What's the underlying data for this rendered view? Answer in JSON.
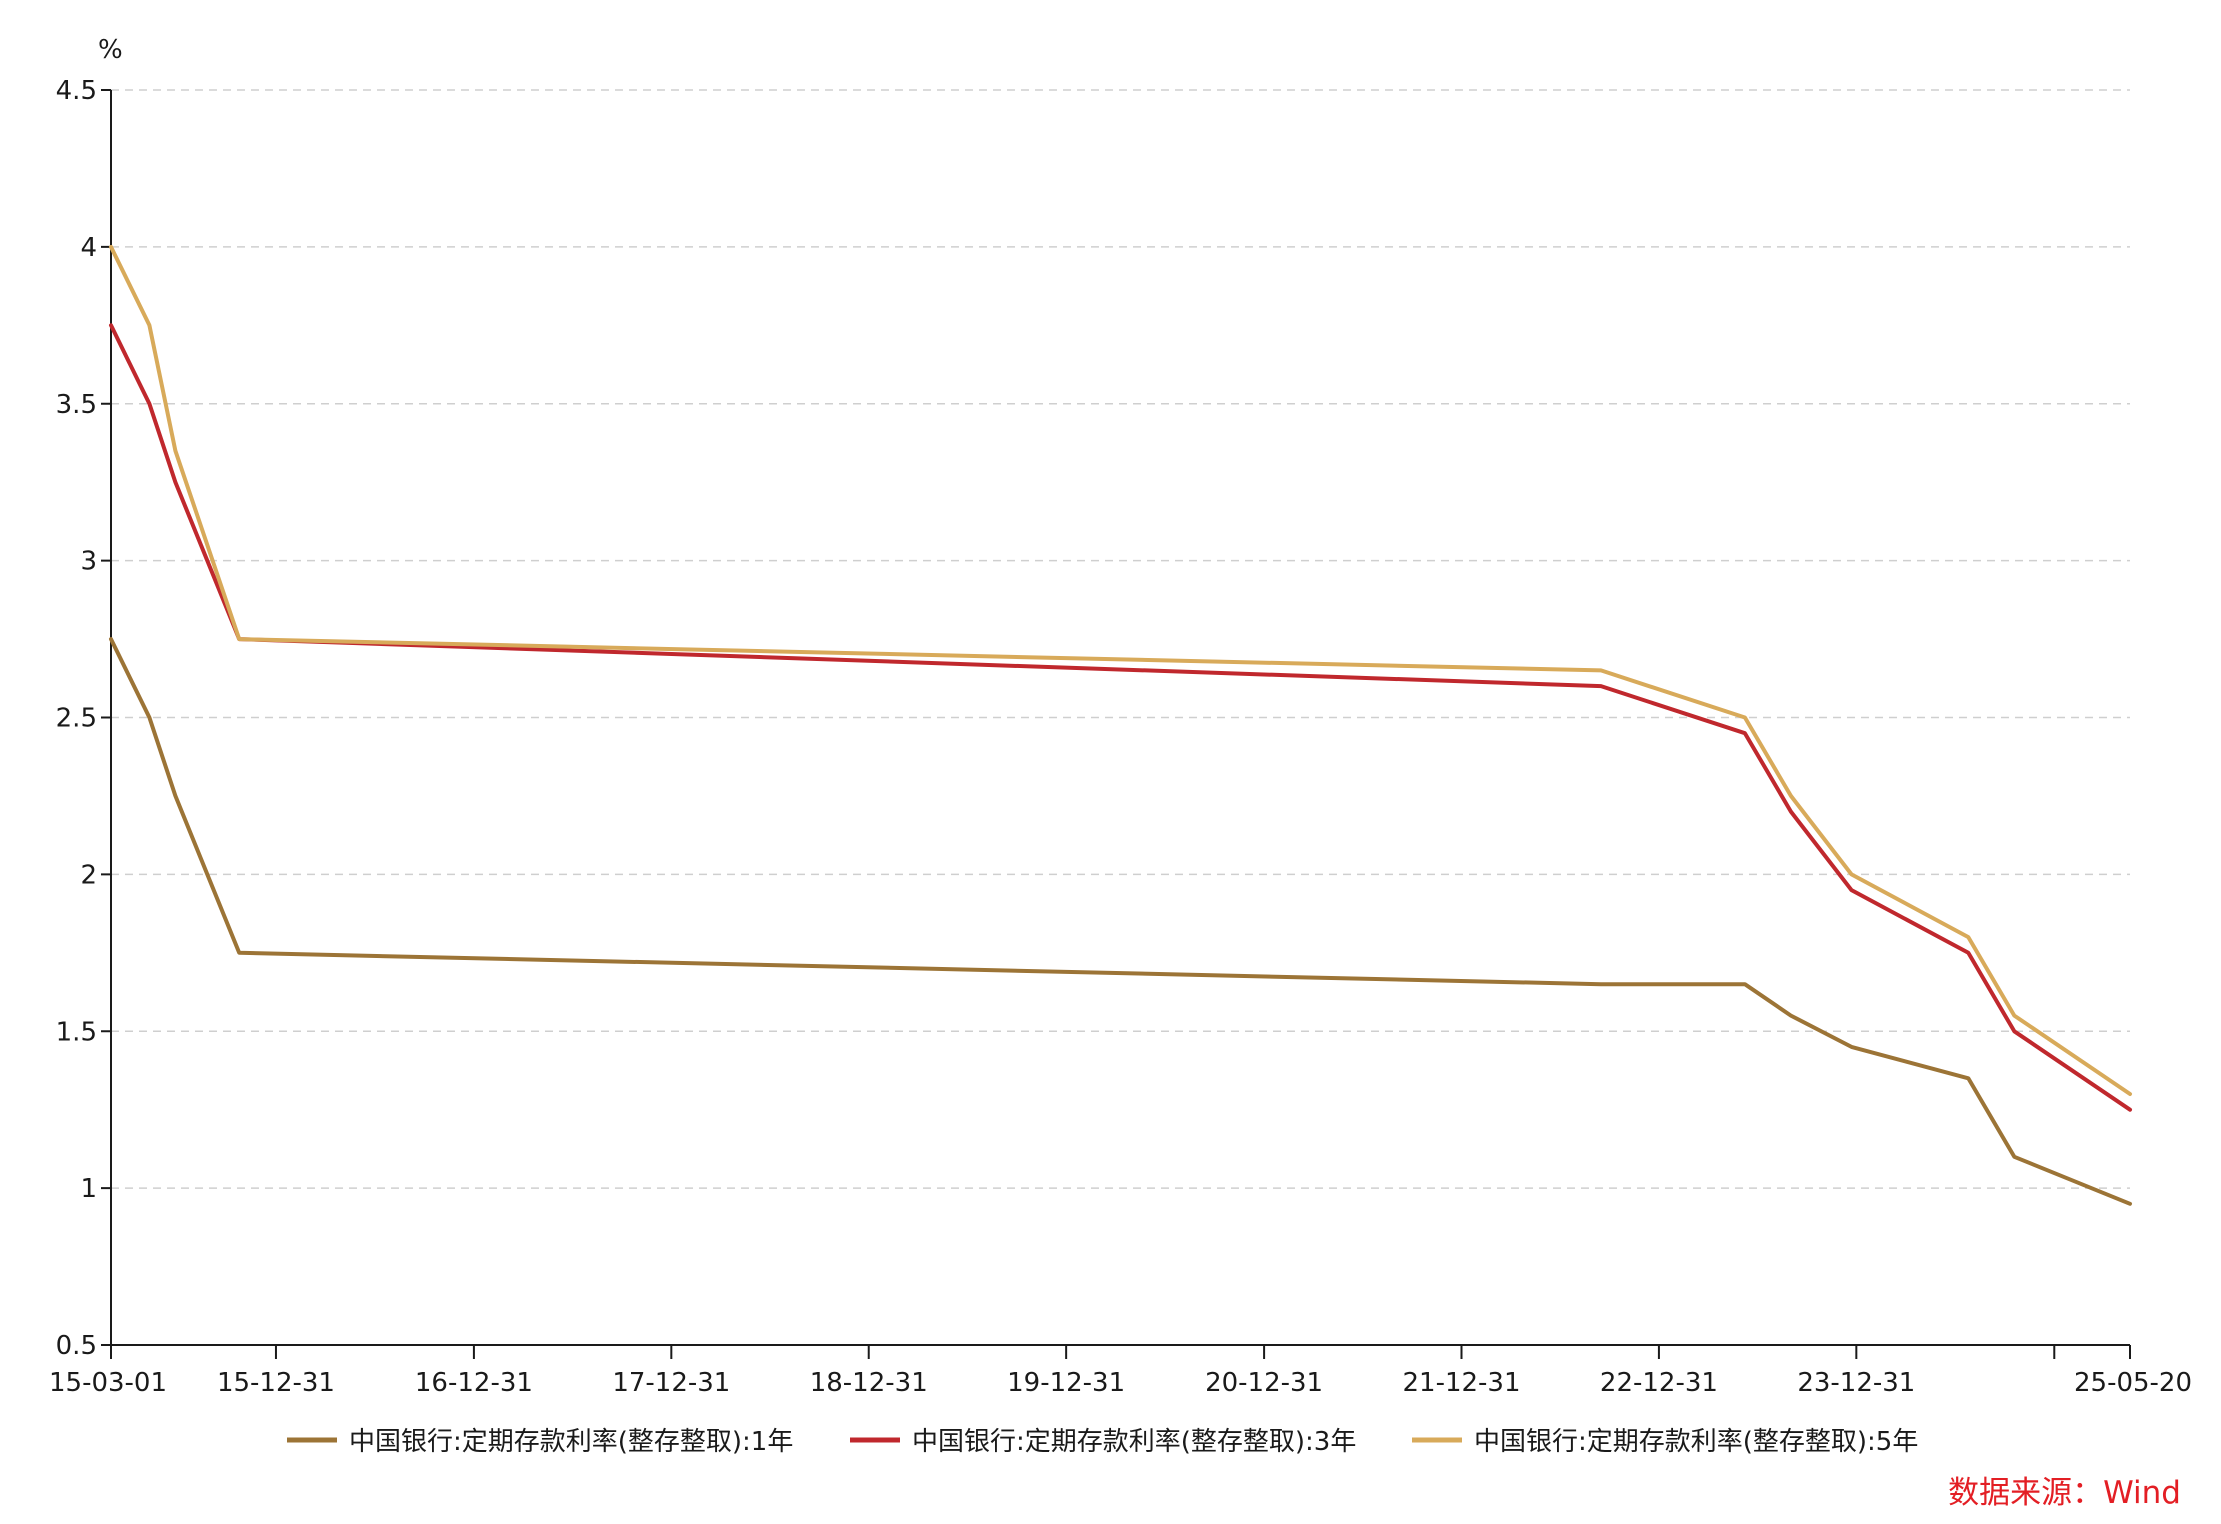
{
  "chart_data": {
    "type": "line",
    "y_unit": "%",
    "ylim": [
      0.5,
      4.5
    ],
    "y_ticks": [
      "4.5",
      "4",
      "3.5",
      "3",
      "2.5",
      "2",
      "1.5",
      "1",
      "0.5"
    ],
    "y_tick_values": [
      4.5,
      4,
      3.5,
      3,
      2.5,
      2,
      1.5,
      1,
      0.5
    ],
    "x_range": [
      "2015-03-01",
      "2025-05-20"
    ],
    "x_ticks": [
      {
        "label": "15-03-01",
        "date": "2015-03-01"
      },
      {
        "label": "15-12-31",
        "date": "2015-12-31"
      },
      {
        "label": "16-12-31",
        "date": "2016-12-31"
      },
      {
        "label": "17-12-31",
        "date": "2017-12-31"
      },
      {
        "label": "18-12-31",
        "date": "2018-12-31"
      },
      {
        "label": "19-12-31",
        "date": "2019-12-31"
      },
      {
        "label": "20-12-31",
        "date": "2020-12-31"
      },
      {
        "label": "21-12-31",
        "date": "2021-12-31"
      },
      {
        "label": "22-12-31",
        "date": "2022-12-31"
      },
      {
        "label": "23-12-31",
        "date": "2023-12-31"
      },
      {
        "label": "",
        "date": "2024-12-31"
      },
      {
        "label": "25-05-20",
        "date": "2025-05-20"
      }
    ],
    "grid": "horizontal dashed",
    "legend_position": "bottom",
    "series": [
      {
        "name": "中国银行:定期存款利率(整存整取):1年",
        "color": "#9c7436",
        "points": [
          [
            "2015-03-01",
            2.75
          ],
          [
            "2015-05-11",
            2.5
          ],
          [
            "2015-06-28",
            2.25
          ],
          [
            "2015-10-24",
            1.75
          ],
          [
            "2022-09-15",
            1.65
          ],
          [
            "2023-06-08",
            1.65
          ],
          [
            "2023-09-01",
            1.55
          ],
          [
            "2023-12-22",
            1.45
          ],
          [
            "2024-07-25",
            1.35
          ],
          [
            "2024-10-18",
            1.1
          ],
          [
            "2025-05-20",
            0.95
          ]
        ]
      },
      {
        "name": "中国银行:定期存款利率(整存整取):3年",
        "color": "#c0282d",
        "points": [
          [
            "2015-03-01",
            3.75
          ],
          [
            "2015-05-11",
            3.5
          ],
          [
            "2015-06-28",
            3.25
          ],
          [
            "2015-10-24",
            2.75
          ],
          [
            "2022-09-15",
            2.6
          ],
          [
            "2023-06-08",
            2.45
          ],
          [
            "2023-09-01",
            2.2
          ],
          [
            "2023-12-22",
            1.95
          ],
          [
            "2024-07-25",
            1.75
          ],
          [
            "2024-10-18",
            1.5
          ],
          [
            "2025-05-20",
            1.25
          ]
        ]
      },
      {
        "name": "中国银行:定期存款利率(整存整取):5年",
        "color": "#d8aa5a",
        "points": [
          [
            "2015-03-01",
            4.0
          ],
          [
            "2015-05-11",
            3.75
          ],
          [
            "2015-06-28",
            3.35
          ],
          [
            "2015-10-24",
            2.75
          ],
          [
            "2022-09-15",
            2.65
          ],
          [
            "2023-06-08",
            2.5
          ],
          [
            "2023-09-01",
            2.25
          ],
          [
            "2023-12-22",
            2.0
          ],
          [
            "2024-07-25",
            1.8
          ],
          [
            "2024-10-18",
            1.55
          ],
          [
            "2025-05-20",
            1.3
          ]
        ]
      }
    ],
    "source": "数据来源：Wind",
    "source_color": "#e31e24"
  }
}
